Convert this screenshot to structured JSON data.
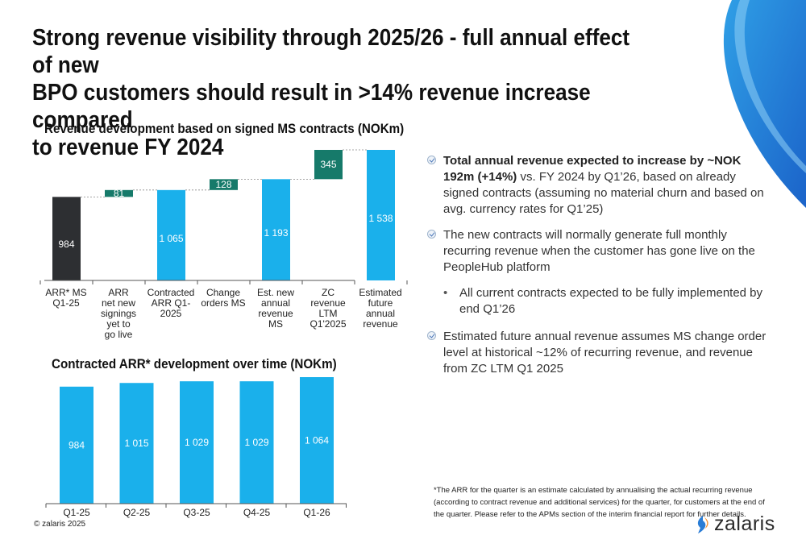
{
  "title": "Strong revenue visibility through 2025/26  - full annual effect of new\nBPO customers should result in >14% revenue increase compared\nto revenue FY 2024",
  "colors": {
    "accent": "#1ab0eb",
    "dark_bar": "#2d2f32",
    "teal_bar": "#167a6a",
    "brand_blue": "#2a7dd6"
  },
  "chart_data": [
    {
      "type": "bar",
      "subtype": "waterfall",
      "title": "Revenue development based on signed MS contracts (NOKm)",
      "categories": [
        "ARR* MS Q1-25",
        "ARR net new signings yet to go live",
        "Contracted ARR Q1-2025",
        "Change orders MS",
        "Est. new annual revenue MS",
        "ZC revenue LTM Q1'2025",
        "Estimated future annual revenue"
      ],
      "category_labels": [
        [
          "ARR* MS",
          "Q1-25"
        ],
        [
          "ARR",
          "net new",
          "signings",
          "yet to",
          "go live"
        ],
        [
          "Contracted",
          "ARR Q1-",
          "2025"
        ],
        [
          "Change",
          "orders MS"
        ],
        [
          "Est. new",
          "annual",
          "revenue",
          "MS"
        ],
        [
          "ZC",
          "revenue",
          "LTM",
          "Q1'2025"
        ],
        [
          "Estimated",
          "future",
          "annual",
          "revenue"
        ]
      ],
      "values": [
        984,
        81,
        1065,
        128,
        1193,
        345,
        1538
      ],
      "value_labels": [
        "984",
        "81",
        "1 065",
        "128",
        "1 193",
        "345",
        "1 538"
      ],
      "bar_kinds": [
        "start",
        "delta",
        "total",
        "delta",
        "total",
        "delta",
        "total"
      ],
      "ylim": [
        0,
        1538
      ]
    },
    {
      "type": "bar",
      "title": "Contracted ARR* development over time (NOKm)",
      "categories": [
        "Q1-25",
        "Q2-25",
        "Q3-25",
        "Q4-25",
        "Q1-26"
      ],
      "values": [
        984,
        1015,
        1029,
        1029,
        1064
      ],
      "value_labels": [
        "984",
        "1 015",
        "1 029",
        "1 029",
        "1 064"
      ],
      "ylim": [
        0,
        1064
      ]
    }
  ],
  "bullets": [
    {
      "bold": "Total annual revenue expected to increase by ~NOK 192m (+14%)",
      "text": " vs. FY 2024 by Q1’26, based on already signed contracts (assuming no material churn and based on avg. currency rates for Q1’25)"
    },
    {
      "bold": "",
      "text": "The new contracts will normally generate full monthly recurring revenue when the customer has gone live on the PeopleHub platform"
    },
    {
      "bold": "",
      "text": "Estimated future annual revenue assumes MS change order level at historical ~12% of recurring revenue, and revenue from ZC LTM Q1 2025"
    }
  ],
  "sub_bullet": "All current contracts expected to be fully implemented by end Q1’26",
  "footnote": "*The ARR for the quarter is an estimate calculated by annualising the actual recurring revenue (according to contract revenue and additional services) for the quarter, for customers at the end of the quarter. Please refer to the APMs section of the interim financial report for further details.",
  "copyright": "© zalaris 2025",
  "logo_text": "zalaris"
}
